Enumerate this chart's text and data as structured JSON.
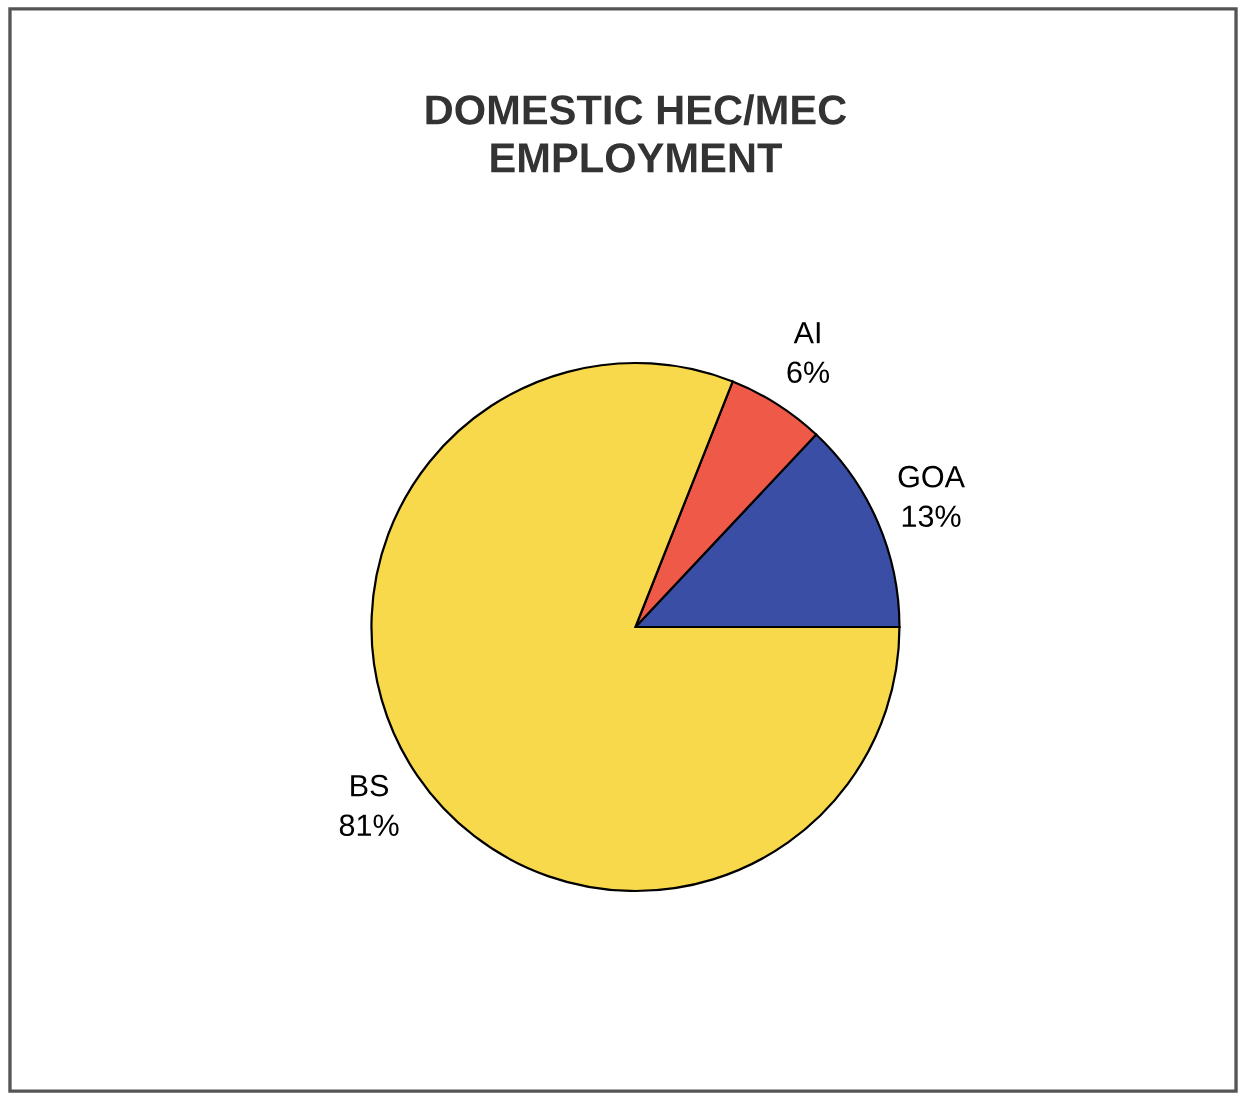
{
  "chart_data": {
    "type": "pie",
    "title": "DOMESTIC HEC/MEC\nEMPLOYMENT",
    "categories": [
      "GOA",
      "AI",
      "BS"
    ],
    "values": [
      13,
      6,
      81
    ],
    "colors": [
      "#3b4ea6",
      "#ef5a48",
      "#f9d94c"
    ],
    "value_labels": [
      "13%",
      "6%",
      "81%"
    ],
    "legend": false
  }
}
